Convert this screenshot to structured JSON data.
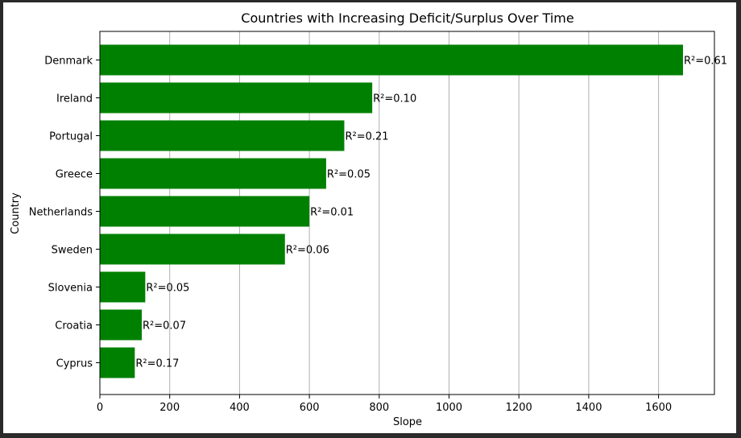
{
  "chart_data": {
    "type": "bar",
    "orientation": "horizontal",
    "title": "Countries with Increasing Deficit/Surplus Over Time",
    "xlabel": "Slope",
    "ylabel": "Country",
    "xlim": [
      0,
      1760
    ],
    "xticks": [
      0,
      200,
      400,
      600,
      800,
      1000,
      1200,
      1400,
      1600
    ],
    "grid": "x",
    "bar_color": "#008000",
    "categories": [
      "Denmark",
      "Ireland",
      "Portugal",
      "Greece",
      "Netherlands",
      "Sweden",
      "Slovenia",
      "Croatia",
      "Cyprus"
    ],
    "values": [
      1670,
      780,
      700,
      648,
      600,
      530,
      130,
      120,
      100
    ],
    "annotations": [
      "R²=0.61",
      "R²=0.10",
      "R²=0.21",
      "R²=0.05",
      "R²=0.01",
      "R²=0.06",
      "R²=0.05",
      "R²=0.07",
      "R²=0.17"
    ]
  }
}
